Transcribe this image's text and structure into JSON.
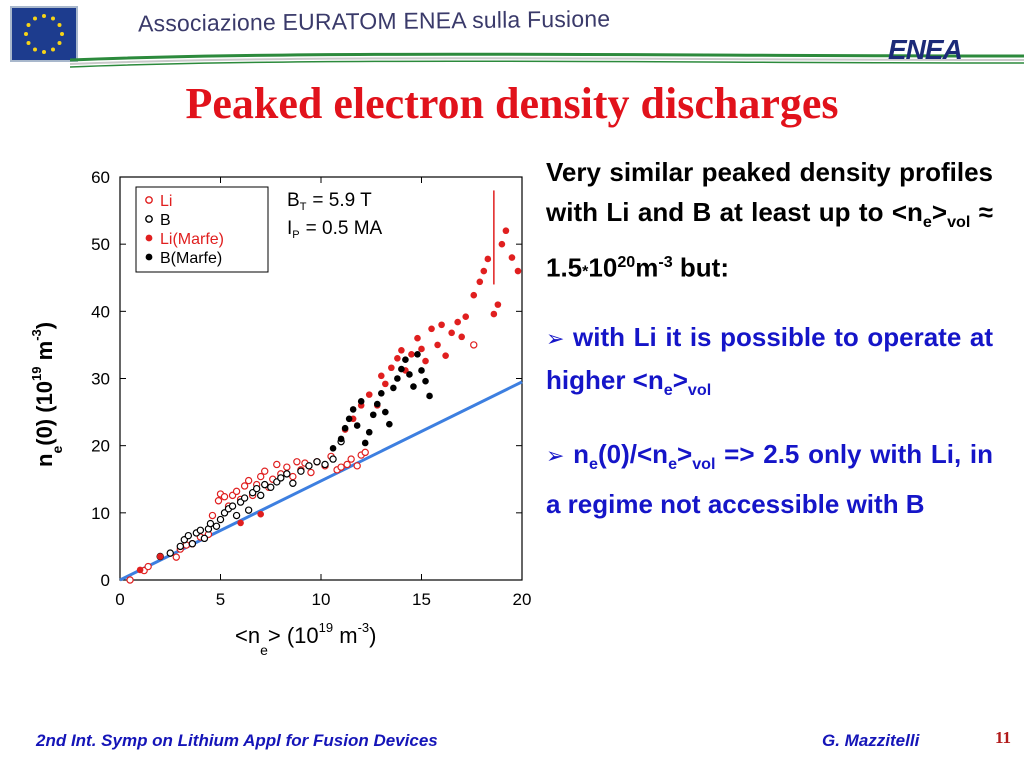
{
  "header": {
    "association": "Associazione EURATOM ENEA sulla Fusione",
    "logo_text": "ENEA"
  },
  "slide": {
    "title": "Peaked electron density discharges"
  },
  "text": {
    "p1": {
      "a": "Very similar peaked density profiles with Li and B at least up to <n",
      "sub1": "e",
      "b": ">",
      "sub2": "vol",
      "c": " ≈ 1.5",
      "star": "*",
      "d": "10",
      "sup1": "20",
      "e": "m",
      "sup2": "-3",
      "f": " but:"
    },
    "bullet_glyph": "➢",
    "b1": {
      "a": " with Li it is possible to operate at higher <n",
      "sub1": "e",
      "b": ">",
      "sub2": "vol"
    },
    "b2": {
      "a": " n",
      "sub1": "e",
      "b": "(0)/<n",
      "sub2": "e",
      "c": ">",
      "sub3": "vol",
      "d": " => 2.5 only with Li, in a regime not accessible with B"
    }
  },
  "footer": {
    "left": "2nd Int. Symp on Lithium Appl for Fusion Devices",
    "right": "G. Mazzitelli",
    "page": "11"
  },
  "colors": {
    "title": "#e1121b",
    "text_blue": "#1515c8",
    "li": "#e01f1f",
    "b": "#000000",
    "line": "#3d7fe0"
  },
  "chart_data": {
    "type": "scatter",
    "xlim": [
      0,
      20
    ],
    "ylim": [
      0,
      60
    ],
    "x_ticks": [
      0,
      5,
      10,
      15,
      20
    ],
    "y_ticks": [
      0,
      10,
      20,
      30,
      40,
      50,
      60
    ],
    "xlabel": {
      "a": "<n",
      "sub": "e",
      "b": "> (10",
      "sup1": "19",
      "c": " m",
      "sup2": "-3",
      "d": ")"
    },
    "ylabel": {
      "a": "n",
      "sub": "e",
      "b": "(0) (10",
      "sup1": "19",
      "c": " m",
      "sup2": "-3",
      "d": ")"
    },
    "annotation": {
      "bt_label": "B",
      "bt_sub": "T",
      "bt_value": "= 5.9 T",
      "ip_label": "I",
      "ip_sub": "P",
      "ip_value": "= 0.5 MA"
    },
    "legend_position": "top-left",
    "reference_line": {
      "x": [
        0,
        20
      ],
      "y": [
        0,
        29.5
      ]
    },
    "error_bar": {
      "x": 18.6,
      "y_low": 44,
      "y_high": 58
    },
    "series": [
      {
        "name": "Li",
        "marker": "open",
        "color": "#e01f1f",
        "x": [
          0.5,
          1.2,
          1.4,
          2.8,
          3.0,
          3.3,
          3.6,
          4.0,
          4.4,
          4.6,
          4.9,
          5.0,
          5.2,
          5.4,
          5.6,
          5.8,
          6.0,
          6.2,
          6.4,
          6.6,
          6.8,
          7.0,
          7.2,
          7.4,
          7.6,
          7.8,
          8.0,
          8.3,
          8.6,
          8.8,
          9.0,
          9.2,
          9.5,
          9.8,
          10.2,
          10.5,
          10.8,
          11.0,
          11.3,
          11.5,
          11.8,
          12.0,
          12.2,
          17.6
        ],
        "y": [
          0.0,
          1.4,
          2.0,
          3.4,
          4.6,
          5.2,
          5.4,
          6.4,
          6.8,
          9.6,
          11.8,
          12.8,
          12.4,
          11.0,
          12.6,
          13.2,
          12.0,
          14.0,
          14.8,
          12.6,
          14.2,
          15.4,
          16.2,
          13.8,
          15.0,
          17.2,
          15.8,
          16.8,
          15.4,
          17.6,
          16.4,
          17.4,
          16.0,
          17.6,
          17.0,
          18.4,
          16.4,
          16.8,
          17.2,
          18.0,
          17.0,
          18.6,
          19.0,
          35.0
        ]
      },
      {
        "name": "B",
        "marker": "open",
        "color": "#000000",
        "x": [
          2.0,
          2.5,
          3.0,
          3.2,
          3.4,
          3.6,
          3.8,
          4.0,
          4.2,
          4.4,
          4.5,
          4.8,
          5.0,
          5.2,
          5.4,
          5.6,
          5.8,
          6.0,
          6.2,
          6.4,
          6.6,
          6.8,
          7.0,
          7.2,
          7.5,
          7.8,
          8.0,
          8.3,
          8.6,
          9.0,
          9.4,
          9.8,
          10.2,
          10.6,
          11.0
        ],
        "y": [
          3.5,
          4.0,
          5.0,
          6.0,
          6.6,
          5.4,
          7.0,
          7.4,
          6.2,
          7.6,
          8.4,
          8.0,
          9.0,
          10.0,
          10.6,
          11.0,
          9.6,
          11.6,
          12.2,
          10.4,
          13.0,
          13.6,
          12.6,
          14.2,
          13.8,
          14.6,
          15.2,
          15.8,
          14.4,
          16.2,
          17.0,
          17.6,
          17.2,
          18.0,
          20.6
        ]
      },
      {
        "name": "Li(Marfe)",
        "marker": "filled",
        "color": "#e01f1f",
        "x": [
          1.0,
          2.0,
          6.0,
          7.0,
          11.2,
          11.6,
          12.0,
          12.4,
          12.8,
          13.0,
          13.2,
          13.5,
          13.8,
          14.0,
          14.2,
          14.5,
          14.8,
          15.0,
          15.2,
          15.5,
          15.8,
          16.0,
          16.2,
          16.5,
          16.8,
          17.0,
          17.2,
          17.6,
          17.9,
          18.1,
          18.3,
          18.6,
          18.8,
          19.0,
          19.2,
          19.5,
          19.8
        ],
        "y": [
          1.5,
          3.5,
          8.5,
          9.8,
          22.4,
          24.0,
          26.0,
          27.6,
          26.0,
          30.4,
          29.2,
          31.6,
          33.0,
          34.2,
          31.2,
          33.6,
          36.0,
          34.4,
          32.6,
          37.4,
          35.0,
          38.0,
          33.4,
          36.8,
          38.4,
          36.2,
          39.2,
          42.4,
          44.4,
          46.0,
          47.8,
          39.6,
          41.0,
          50.0,
          52.0,
          48.0,
          46.0
        ]
      },
      {
        "name": "B(Marfe)",
        "marker": "filled",
        "color": "#000000",
        "x": [
          10.6,
          11.0,
          11.2,
          11.4,
          11.6,
          11.8,
          12.0,
          12.2,
          12.4,
          12.6,
          12.8,
          13.0,
          13.2,
          13.4,
          13.6,
          13.8,
          14.0,
          14.2,
          14.4,
          14.6,
          14.8,
          15.0,
          15.2,
          15.4
        ],
        "y": [
          19.6,
          21.0,
          22.6,
          24.0,
          25.4,
          23.0,
          26.6,
          20.4,
          22.0,
          24.6,
          26.2,
          27.8,
          25.0,
          23.2,
          28.6,
          30.0,
          31.4,
          32.8,
          30.6,
          28.8,
          33.6,
          31.2,
          29.6,
          27.4
        ]
      }
    ]
  }
}
